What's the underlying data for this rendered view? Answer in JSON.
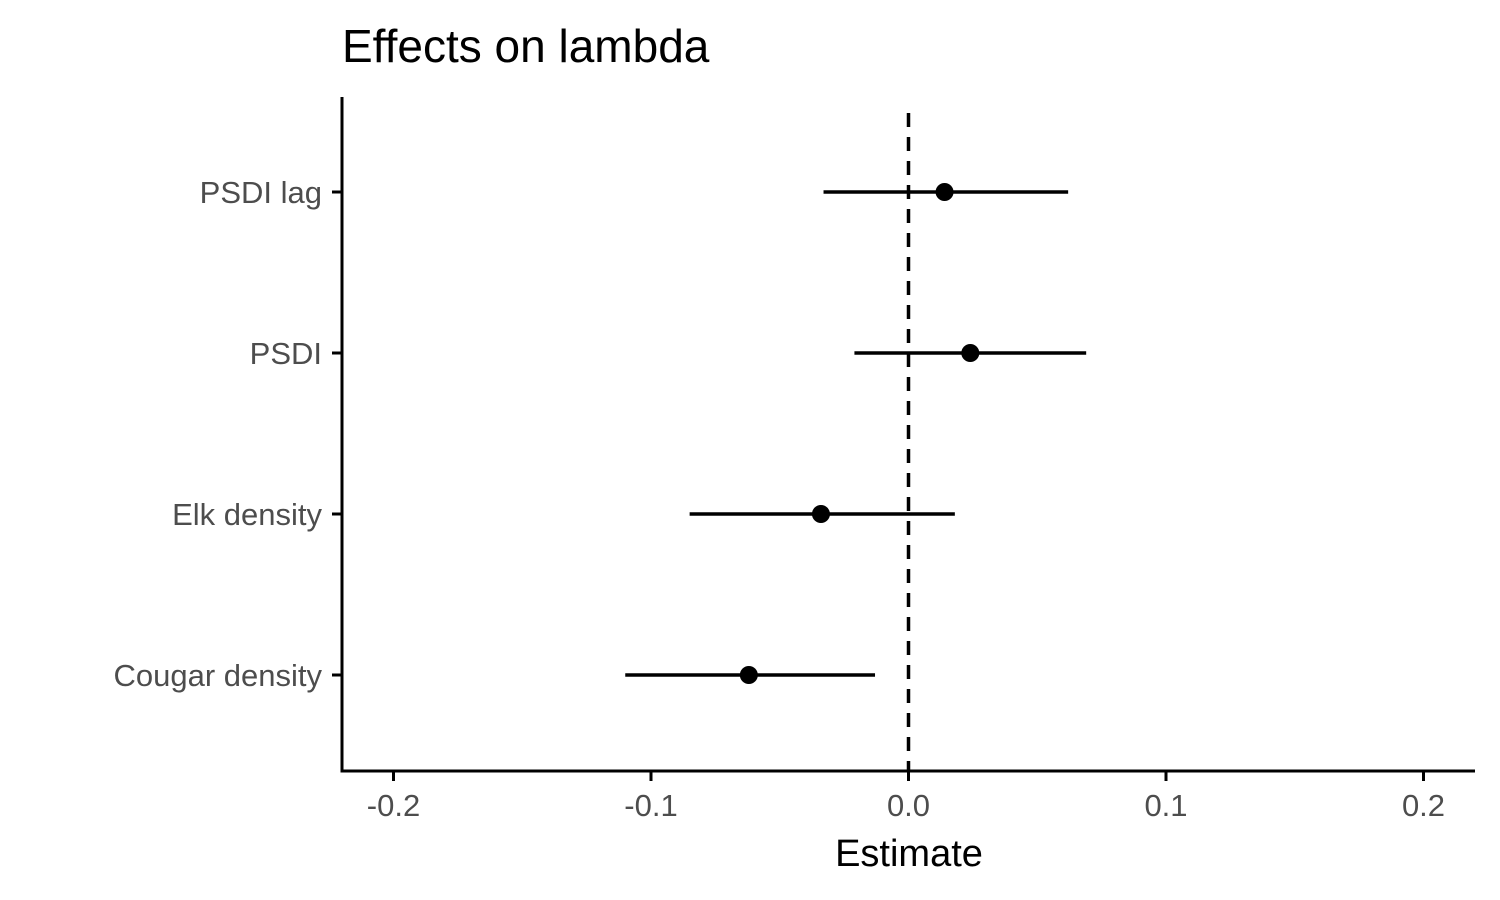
{
  "chart_data": {
    "type": "scatter",
    "subtype": "coefficient-plot",
    "title": "Effects on lambda",
    "xlabel": "Estimate",
    "ylabel": "",
    "xlim": [
      -0.22,
      0.22
    ],
    "xticks": [
      -0.2,
      -0.1,
      0.0,
      0.1,
      0.2
    ],
    "xtick_labels": [
      "-0.2",
      "-0.1",
      "0.0",
      "0.1",
      "0.2"
    ],
    "reference_line": {
      "x": 0.0,
      "style": "dashed"
    },
    "grid": false,
    "legend": "none",
    "categories": [
      "PSDI lag",
      "PSDI",
      "Elk density",
      "Cougar density"
    ],
    "estimates": [
      0.014,
      0.024,
      -0.034,
      -0.062
    ],
    "lower": [
      -0.033,
      -0.021,
      -0.085,
      -0.11
    ],
    "upper": [
      0.062,
      0.069,
      0.018,
      -0.013
    ],
    "colors": {
      "marks": "#000000",
      "tick_label": "#4d4d4d",
      "axis": "#000000"
    }
  }
}
